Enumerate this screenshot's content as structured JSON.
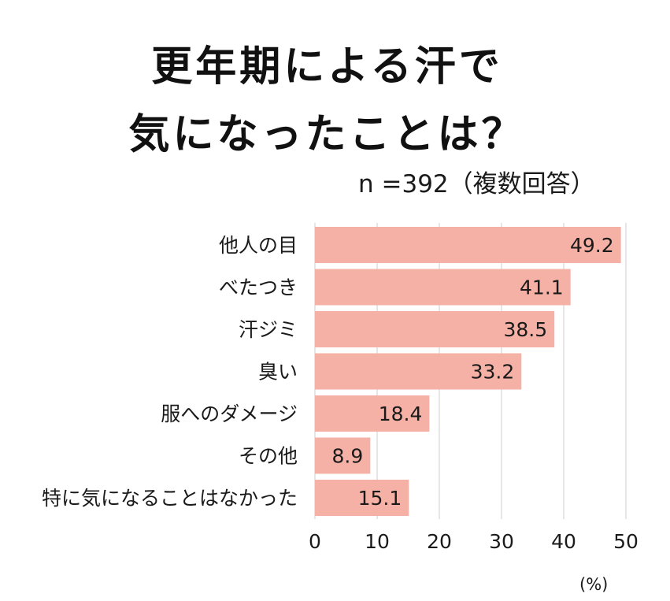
{
  "title_lines": [
    "更年期による汗で",
    "気になったことは？"
  ],
  "subtitle": "n =392（複数回答）",
  "unit_label": "(%)",
  "colors": {
    "bar": "#f5b1a6",
    "grid": "#cccccc",
    "text": "#1a1a1a"
  },
  "chart_data": {
    "type": "bar",
    "orientation": "horizontal",
    "title": "更年期による汗で気になったことは？",
    "categories": [
      "他人の目",
      "べたつき",
      "汗ジミ",
      "臭い",
      "服へのダメージ",
      "その他",
      "特に気になることはなかった"
    ],
    "values": [
      49.2,
      41.1,
      38.5,
      33.2,
      18.4,
      8.9,
      15.1
    ],
    "value_labels": [
      "49.2",
      "41.1",
      "38.5",
      "33.2",
      "18.4",
      "8.9",
      "15.1"
    ],
    "xlim": [
      0,
      50
    ],
    "xticks": [
      "0",
      "10",
      "20",
      "30",
      "40",
      "50"
    ],
    "xlabel": "(%)",
    "ylabel": "",
    "grid": true
  }
}
